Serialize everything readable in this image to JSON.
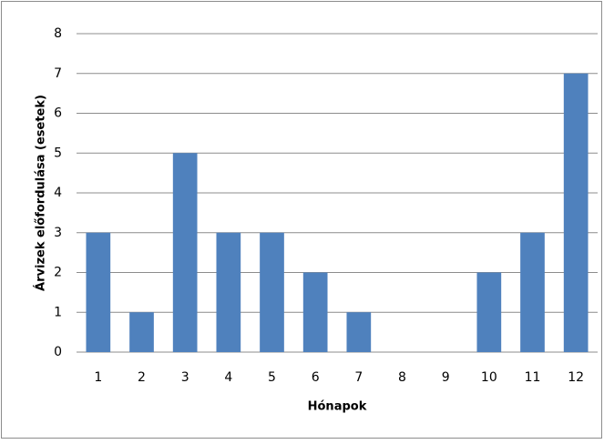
{
  "chart_data": {
    "type": "bar",
    "x_label": "Hónapok",
    "y_label": "Árvizek előfordulása (esetek)",
    "categories": [
      "1",
      "2",
      "3",
      "4",
      "5",
      "6",
      "7",
      "8",
      "9",
      "10",
      "11",
      "12"
    ],
    "values": [
      3,
      1,
      5,
      3,
      3,
      2,
      1,
      0,
      0,
      2,
      3,
      7
    ],
    "color": "#4f81bd",
    "ylim": [
      0,
      8
    ],
    "yticks": [
      0,
      1,
      2,
      3,
      4,
      5,
      6,
      7,
      8
    ],
    "grid": true
  }
}
